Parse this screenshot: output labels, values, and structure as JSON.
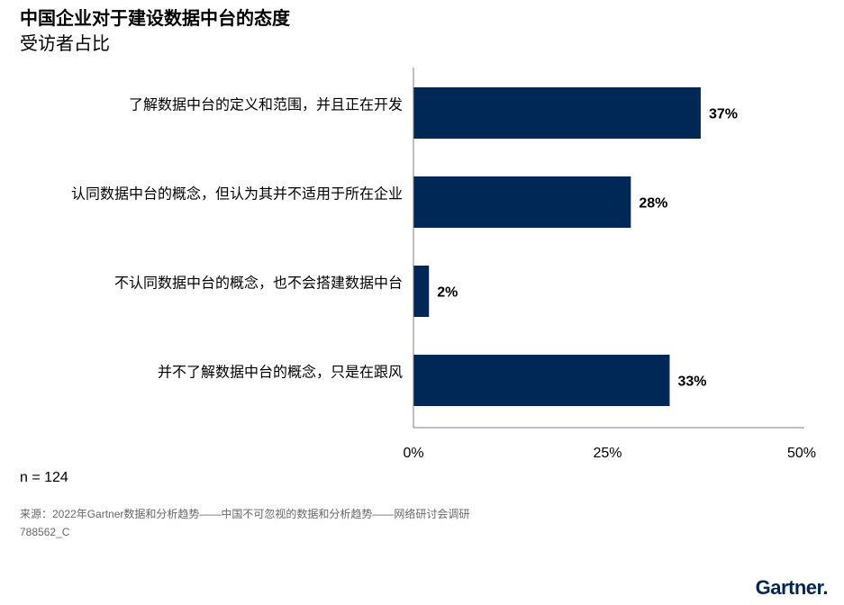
{
  "title": "中国企业对于建设数据中台的态度",
  "subtitle": "受访者占比",
  "sample": "n = 124",
  "source": "来源：2022年Gartner数据和分析趋势——中国不可忽视的数据和分析趋势——网络研讨会调研",
  "code": "788562_C",
  "logo": "Gartner.",
  "colors": {
    "bar": "#002856",
    "axis": "#7f7f7f"
  },
  "chart_data": {
    "type": "bar",
    "orientation": "horizontal",
    "categories": [
      "了解数据中台的定义和范围，并且正在开发",
      "认同数据中台的概念，但认为其并不适用于所在企业",
      "不认同数据中台的概念，也不会搭建数据中台",
      "并不了解数据中台的概念，只是在跟风"
    ],
    "values": [
      37,
      28,
      2,
      33
    ],
    "data_labels": [
      "37%",
      "28%",
      "2%",
      "33%"
    ],
    "xlim": [
      0,
      50
    ],
    "xticks": [
      0,
      25,
      50
    ],
    "xtick_labels": [
      "0%",
      "25%",
      "50%"
    ],
    "grid": false
  }
}
